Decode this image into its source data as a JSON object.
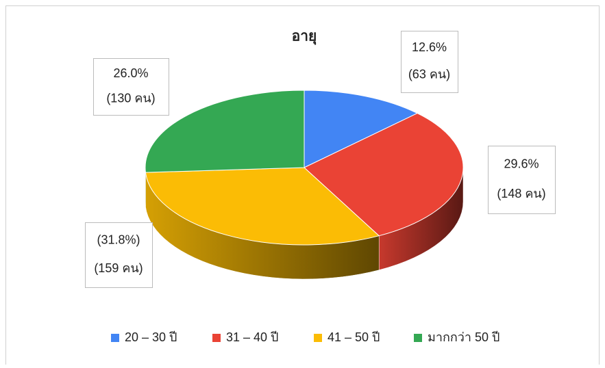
{
  "chart_data": {
    "type": "pie",
    "title": "อายุ",
    "categories": [
      "20 – 30 ปี",
      "31 – 40 ปี",
      "41 – 50 ปี",
      "มากกว่า 50 ปี"
    ],
    "values": [
      12.6,
      29.6,
      31.8,
      26.0
    ],
    "value_labels": [
      "12.6%",
      "29.6%",
      "(31.8%)",
      "26.0%"
    ],
    "count_labels": [
      "(63 คน)",
      "(148 คน)",
      "(159 คน)",
      "(130 คน)"
    ],
    "colors": [
      "#4285f4",
      "#ea4335",
      "#fbbc05",
      "#34a853"
    ],
    "legend": "bottom"
  }
}
